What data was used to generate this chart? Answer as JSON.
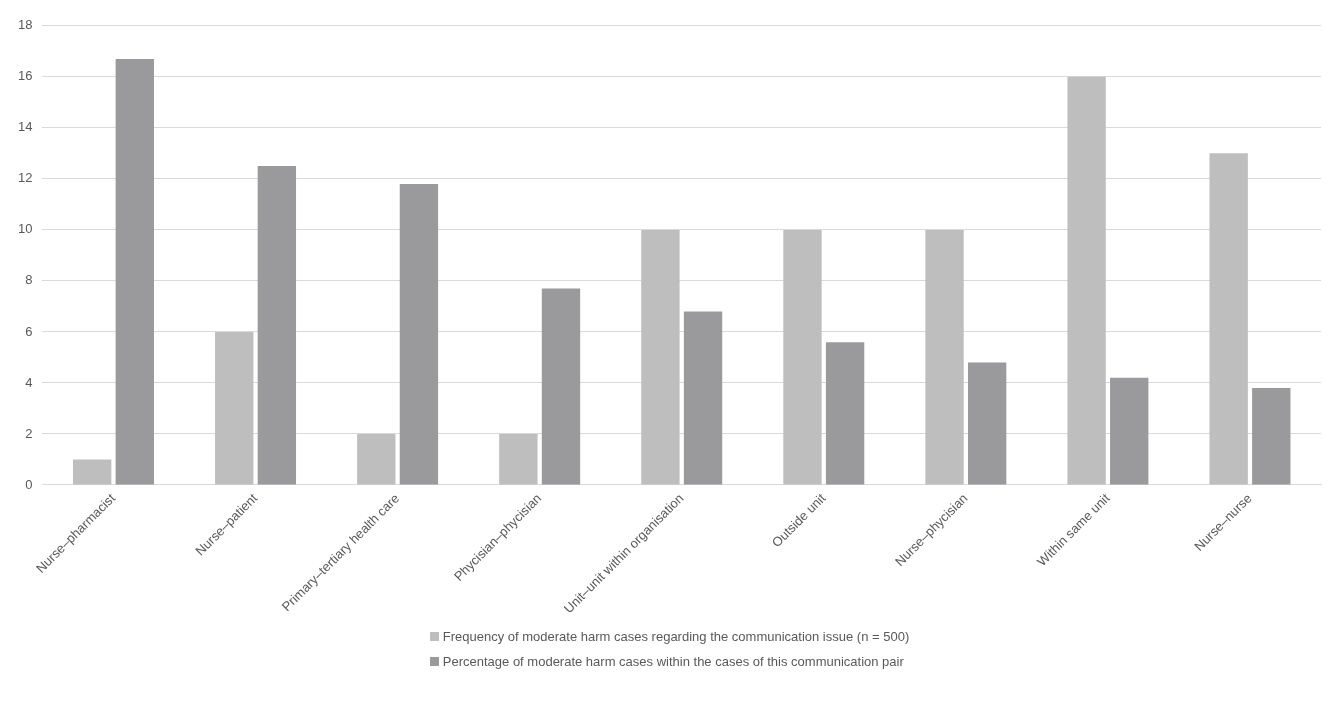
{
  "chart_data": {
    "type": "bar",
    "categories": [
      "Nurse–pharmacist",
      "Nurse–patient",
      "Primary–tertiary health care",
      "Phycisian–phycisian",
      "Unit–unit within organisation",
      "Outside unit",
      "Nurse–phycisian",
      "Within same unit",
      "Nurse–nurse"
    ],
    "series": [
      {
        "name": "Frequency of moderate harm cases regarding the communication issue (n = 500)",
        "color": "#bebebf",
        "values": [
          1,
          6,
          2,
          2,
          10,
          10,
          10,
          16,
          13
        ]
      },
      {
        "name": "Percentage of moderate harm cases within the cases of this communication pair",
        "color": "#9a9a9c",
        "values": [
          16.7,
          12.5,
          11.8,
          7.7,
          6.8,
          5.6,
          4.8,
          4.2,
          3.8
        ]
      }
    ],
    "ylim": [
      0,
      18
    ],
    "yticks": [
      0,
      2,
      4,
      6,
      8,
      10,
      12,
      14,
      16,
      18
    ],
    "grid": "y",
    "legend": "bottom"
  }
}
